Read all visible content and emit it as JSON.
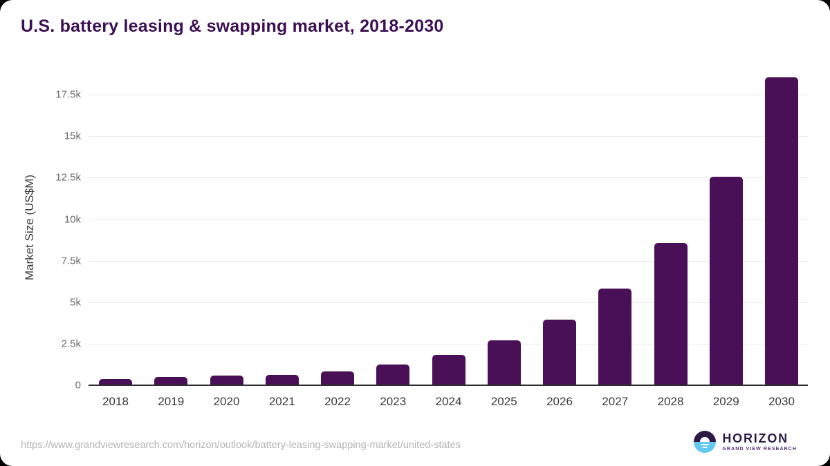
{
  "chart_data": {
    "type": "bar",
    "title": "U.S. battery leasing & swapping market, 2018-2030",
    "xlabel": "",
    "ylabel": "Market Size (US$M)",
    "categories": [
      "2018",
      "2019",
      "2020",
      "2021",
      "2022",
      "2023",
      "2024",
      "2025",
      "2026",
      "2027",
      "2028",
      "2029",
      "2030"
    ],
    "values": [
      360,
      510,
      570,
      625,
      840,
      1250,
      1830,
      2700,
      3960,
      5830,
      8550,
      12560,
      18570
    ],
    "ylim": [
      0,
      19050
    ],
    "yticks": [
      {
        "label": "0",
        "value": 0
      },
      {
        "label": "2.5k",
        "value": 2500
      },
      {
        "label": "5k",
        "value": 5000
      },
      {
        "label": "7.5k",
        "value": 7500
      },
      {
        "label": "10k",
        "value": 10000
      },
      {
        "label": "12.5k",
        "value": 12500
      },
      {
        "label": "15k",
        "value": 15000
      },
      {
        "label": "17.5k",
        "value": 17500
      }
    ],
    "bar_color": "#4a1057",
    "grid": "horizontal",
    "legend": "none",
    "title_color": "#3b1052",
    "gridline_color": "#e9e9e9",
    "axis_line_color": "#2e2e2e"
  },
  "footer": {
    "source_url": "https://www.grandviewresearch.com/horizon/outlook/battery-leasing-swapping-market/united-states",
    "logo": {
      "brand": "HORIZON",
      "tagline": "GRAND VIEW RESEARCH",
      "icon": "horizon-sun-circle-icon",
      "icon_top_color": "#2b1b44",
      "icon_bottom_color": "#62c9f3"
    }
  }
}
